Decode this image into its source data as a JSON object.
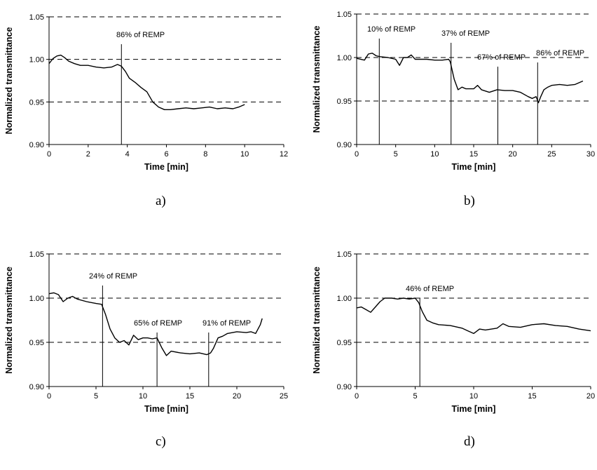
{
  "chart_data": [
    {
      "type": "line",
      "caption": "a)",
      "xlabel": "Time [min]",
      "ylabel": "Normalized transmittance",
      "xlim": [
        0,
        12
      ],
      "ylim": [
        0.9,
        1.05
      ],
      "xticks": [
        0,
        2,
        4,
        6,
        8,
        10,
        12
      ],
      "yticks": [
        "0.90",
        "0.95",
        "1.00",
        "1.05"
      ],
      "grid": "dashed horizontal",
      "x": [
        0,
        0.2,
        0.4,
        0.6,
        0.8,
        1.0,
        1.3,
        1.6,
        2.0,
        2.4,
        2.8,
        3.2,
        3.5,
        3.7,
        3.9,
        4.1,
        4.4,
        4.7,
        5.0,
        5.3,
        5.6,
        5.9,
        6.2,
        6.6,
        7.0,
        7.4,
        7.8,
        8.2,
        8.6,
        9.0,
        9.4,
        9.7,
        10.0
      ],
      "values": [
        0.995,
        1.001,
        1.004,
        1.005,
        1.002,
        0.998,
        0.995,
        0.993,
        0.993,
        0.991,
        0.99,
        0.991,
        0.994,
        0.992,
        0.986,
        0.978,
        0.973,
        0.967,
        0.962,
        0.95,
        0.944,
        0.941,
        0.941,
        0.942,
        0.943,
        0.942,
        0.943,
        0.944,
        0.942,
        0.943,
        0.942,
        0.944,
        0.947
      ],
      "annotations": [
        {
          "x": 3.7,
          "text": "86% of REMP"
        }
      ]
    },
    {
      "type": "line",
      "caption": "b)",
      "xlabel": "Time [min]",
      "ylabel": "Normalized transmittance",
      "xlim": [
        0,
        30
      ],
      "ylim": [
        0.9,
        1.05
      ],
      "xticks": [
        0,
        5,
        10,
        15,
        20,
        25,
        30
      ],
      "yticks": [
        "0.90",
        "0.95",
        "1.00",
        "1.05"
      ],
      "grid": "dashed horizontal",
      "x": [
        0,
        1,
        1.5,
        2,
        2.5,
        3,
        4,
        5,
        5.5,
        6,
        6.5,
        7,
        7.5,
        8,
        9,
        10,
        11,
        11.8,
        12,
        12.5,
        13,
        13.5,
        14,
        15,
        15.5,
        16,
        17,
        18,
        19,
        20,
        21,
        22,
        22.5,
        23,
        23.3,
        23.6,
        24,
        24.5,
        25,
        26,
        27,
        28,
        29
      ],
      "values": [
        0.999,
        0.997,
        1.004,
        1.005,
        1.002,
        1.001,
        1.0,
        0.998,
        0.991,
        1.0,
        1.0,
        1.003,
        0.998,
        0.998,
        0.998,
        0.997,
        0.997,
        0.998,
        0.995,
        0.975,
        0.963,
        0.966,
        0.964,
        0.964,
        0.968,
        0.963,
        0.96,
        0.963,
        0.962,
        0.962,
        0.96,
        0.955,
        0.953,
        0.955,
        0.948,
        0.955,
        0.963,
        0.966,
        0.968,
        0.969,
        0.968,
        0.969,
        0.973
      ],
      "annotations": [
        {
          "x": 2.9,
          "text": "10% of REMP"
        },
        {
          "x": 12.1,
          "text": "37% of REMP"
        },
        {
          "x": 18.1,
          "text": "67% of REMP"
        },
        {
          "x": 23.2,
          "text": "86% of REMP"
        }
      ]
    },
    {
      "type": "line",
      "caption": "c)",
      "xlabel": "Time [min]",
      "ylabel": "Normalized transmittance",
      "xlim": [
        0,
        25
      ],
      "ylim": [
        0.9,
        1.05
      ],
      "xticks": [
        0,
        5,
        10,
        15,
        20,
        25
      ],
      "yticks": [
        "0.90",
        "0.95",
        "1.00",
        "1.05"
      ],
      "grid": "dashed horizontal",
      "x": [
        0,
        0.5,
        1.0,
        1.5,
        2.0,
        2.5,
        3.0,
        4.0,
        5.0,
        5.6,
        6.0,
        6.5,
        7.0,
        7.5,
        8.0,
        8.5,
        9.0,
        9.5,
        10.0,
        10.5,
        11.0,
        11.5,
        12.0,
        12.5,
        13.0,
        14.0,
        15.0,
        16.0,
        16.8,
        17.2,
        17.5,
        18.0,
        18.5,
        19.0,
        20.0,
        21.0,
        21.5,
        22.0,
        22.5,
        22.7
      ],
      "values": [
        1.005,
        1.006,
        1.004,
        0.996,
        1.0,
        1.002,
        0.999,
        0.996,
        0.994,
        0.993,
        0.982,
        0.965,
        0.955,
        0.95,
        0.952,
        0.947,
        0.958,
        0.953,
        0.955,
        0.955,
        0.954,
        0.955,
        0.944,
        0.935,
        0.94,
        0.938,
        0.937,
        0.938,
        0.936,
        0.938,
        0.943,
        0.955,
        0.957,
        0.96,
        0.962,
        0.961,
        0.962,
        0.96,
        0.97,
        0.977
      ],
      "annotations": [
        {
          "x": 5.7,
          "text": "24% of REMP"
        },
        {
          "x": 11.5,
          "text": "65% of REMP"
        },
        {
          "x": 17.0,
          "text": "91% of REMP"
        }
      ]
    },
    {
      "type": "line",
      "caption": "d)",
      "xlabel": "Time [min]",
      "ylabel": "Normalized transmittance",
      "xlim": [
        0,
        20
      ],
      "ylim": [
        0.9,
        1.05
      ],
      "xticks": [
        0,
        5,
        10,
        15,
        20
      ],
      "yticks": [
        "0.90",
        "0.95",
        "1.00",
        "1.05"
      ],
      "grid": "dashed horizontal",
      "x": [
        0,
        0.4,
        0.8,
        1.2,
        1.6,
        2.0,
        2.4,
        3.0,
        3.5,
        4.0,
        4.5,
        5.0,
        5.3,
        5.6,
        6.0,
        6.5,
        7.0,
        8.0,
        9.0,
        9.5,
        10.0,
        10.5,
        11.0,
        12.0,
        12.5,
        13.0,
        14.0,
        15.0,
        16.0,
        17.0,
        18.0,
        19.0,
        20.0
      ],
      "values": [
        0.989,
        0.99,
        0.987,
        0.984,
        0.99,
        0.996,
        1.0,
        1.0,
        0.999,
        1.0,
        0.999,
        1.0,
        0.995,
        0.985,
        0.975,
        0.972,
        0.97,
        0.969,
        0.966,
        0.963,
        0.96,
        0.965,
        0.964,
        0.966,
        0.971,
        0.968,
        0.967,
        0.97,
        0.971,
        0.969,
        0.968,
        0.965,
        0.963
      ],
      "annotations": [
        {
          "x": 5.4,
          "text": "46% of REMP"
        }
      ]
    }
  ]
}
